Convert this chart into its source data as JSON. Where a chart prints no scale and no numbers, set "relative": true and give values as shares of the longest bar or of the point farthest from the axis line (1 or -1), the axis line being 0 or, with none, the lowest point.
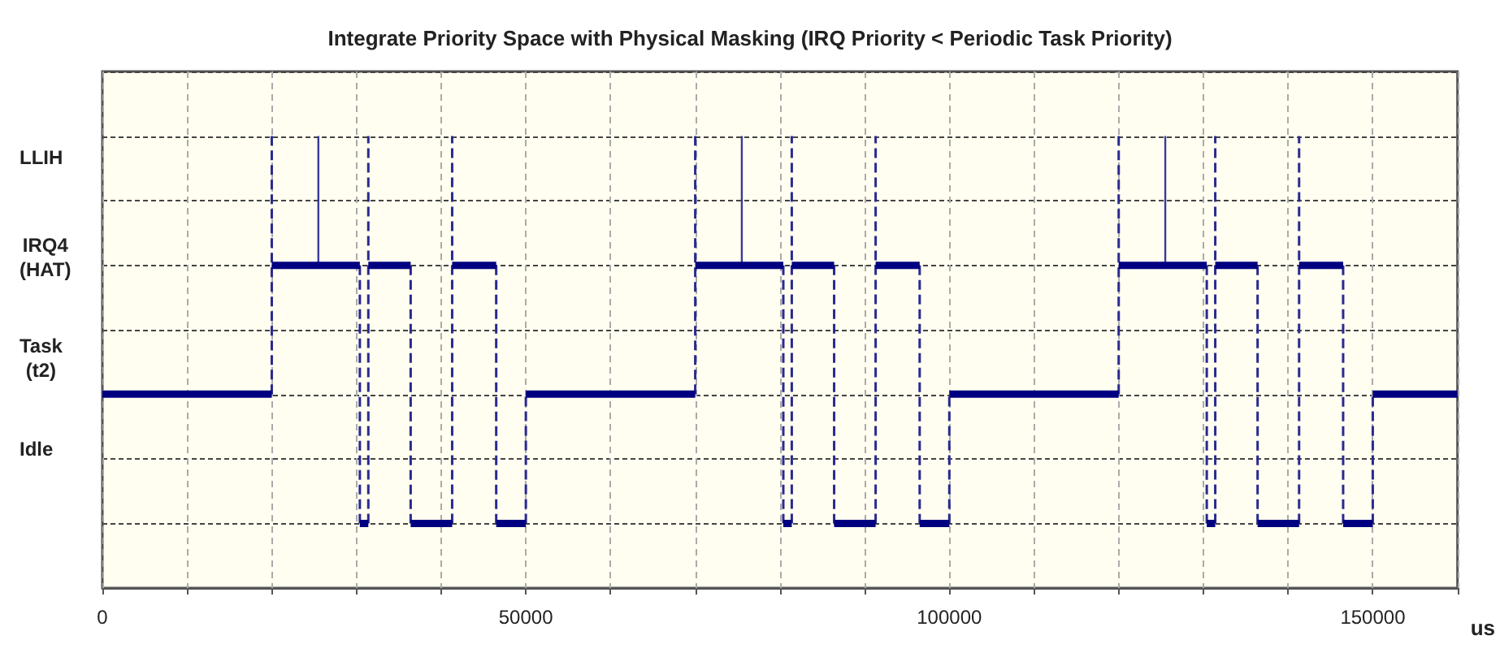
{
  "chart_data": {
    "type": "line",
    "title": "Integrate Priority Space with Physical Masking (IRQ Priority < Periodic Task Priority)",
    "xlabel": "us",
    "annotations": [
      "LLIH",
      "IRQ4\n(HAT)",
      "Task\n(t2)",
      "Idle"
    ],
    "relative": true,
    "xlim": [
      0,
      160000
    ],
    "xticks": [
      0,
      {
        "value": 10000,
        "label": null
      },
      {
        "value": 20000,
        "label": null
      },
      {
        "value": 30000,
        "label": null
      },
      {
        "value": 40000,
        "label": null
      },
      50000,
      {
        "value": 60000,
        "label": null
      },
      {
        "value": 70000,
        "label": null
      },
      {
        "value": 80000,
        "label": null
      },
      {
        "value": 90000,
        "label": null
      },
      100000,
      {
        "value": 110000,
        "label": null
      },
      {
        "value": 120000,
        "label": null
      },
      {
        "value": 130000,
        "label": null
      },
      {
        "value": 140000,
        "label": null
      },
      150000,
      {
        "value": 160000,
        "label": null
      }
    ],
    "grid": true,
    "marker": "none",
    "series": [
      {
        "color": "#000080",
        "line_style": "solid",
        "x": [
          0,
          20000,
          null,
          20000,
          30400,
          null,
          30400,
          31400,
          null,
          31400,
          36400,
          null,
          36400,
          41300,
          null,
          41300,
          46500,
          null,
          46500,
          50000,
          null,
          50000,
          70000,
          null,
          70000,
          80400,
          null,
          80400,
          81400,
          null,
          81400,
          86400,
          null,
          86400,
          91300,
          null,
          91300,
          96500,
          null,
          96500,
          100000,
          null,
          100000,
          120000,
          null,
          120000,
          130400,
          null,
          130400,
          131400,
          null,
          131400,
          136400,
          null,
          136400,
          141300,
          null,
          141300,
          146500,
          null,
          146500,
          150000,
          null,
          150000,
          160000
        ],
        "values": [
          0.429,
          0.429,
          null,
          0.714,
          0.714,
          null,
          0.143,
          0.143,
          null,
          0.714,
          0.714,
          null,
          0.143,
          0.143,
          null,
          0.714,
          0.714,
          null,
          0.143,
          0.143,
          null,
          0.429,
          0.429,
          null,
          0.714,
          0.714,
          null,
          0.143,
          0.143,
          null,
          0.714,
          0.714,
          null,
          0.143,
          0.143,
          null,
          0.714,
          0.714,
          null,
          0.143,
          0.143,
          null,
          0.429,
          0.429,
          null,
          0.714,
          0.714,
          null,
          0.143,
          0.143,
          null,
          0.714,
          0.714,
          null,
          0.143,
          0.143,
          null,
          0.714,
          0.714,
          null,
          0.143,
          0.143,
          null,
          0.429,
          0.429
        ]
      },
      {
        "color": "#2a2a90",
        "line_style": "dashed",
        "x": [
          20000,
          20000,
          null,
          30400,
          30400,
          null,
          31400,
          31400,
          null,
          36400,
          36400,
          null,
          41300,
          41300,
          null,
          46500,
          46500,
          null,
          50000,
          50000,
          null,
          70000,
          70000,
          null,
          80400,
          80400,
          null,
          81400,
          81400,
          null,
          86400,
          86400,
          null,
          91300,
          91300,
          null,
          96500,
          96500,
          null,
          100000,
          100000,
          null,
          120000,
          120000,
          null,
          130400,
          130400,
          null,
          131400,
          131400,
          null,
          136400,
          136400,
          null,
          141300,
          141300,
          null,
          146500,
          146500,
          null,
          150000,
          150000
        ],
        "values": [
          0.429,
          1,
          null,
          0.714,
          0.143,
          null,
          0.143,
          1,
          null,
          0.714,
          0.143,
          null,
          0.143,
          1,
          null,
          0.714,
          0.143,
          null,
          0.143,
          0.429,
          null,
          0.429,
          1,
          null,
          0.714,
          0.143,
          null,
          0.143,
          1,
          null,
          0.714,
          0.143,
          null,
          0.143,
          1,
          null,
          0.714,
          0.143,
          null,
          0.143,
          0.429,
          null,
          0.429,
          1,
          null,
          0.714,
          0.143,
          null,
          0.143,
          1,
          null,
          0.714,
          0.143,
          null,
          0.143,
          1,
          null,
          0.714,
          0.143,
          null,
          0.143,
          0.429
        ]
      },
      {
        "color": "#3a3a9a",
        "line_style": "solid",
        "x": [
          25500,
          25500,
          null,
          75500,
          75500,
          null,
          125500,
          125500
        ],
        "values": [
          0.714,
          1,
          null,
          0.714,
          1,
          null,
          0.714,
          1
        ]
      }
    ]
  }
}
